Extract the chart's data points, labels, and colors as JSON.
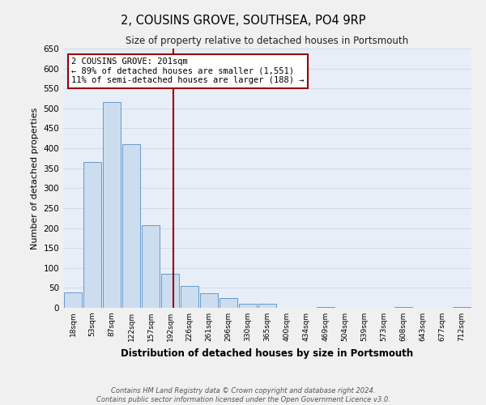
{
  "title": "2, COUSINS GROVE, SOUTHSEA, PO4 9RP",
  "subtitle": "Size of property relative to detached houses in Portsmouth",
  "xlabel": "Distribution of detached houses by size in Portsmouth",
  "ylabel": "Number of detached properties",
  "bar_color": "#ccddf0",
  "bar_edge_color": "#6699cc",
  "bin_labels": [
    "18sqm",
    "53sqm",
    "87sqm",
    "122sqm",
    "157sqm",
    "192sqm",
    "226sqm",
    "261sqm",
    "296sqm",
    "330sqm",
    "365sqm",
    "400sqm",
    "434sqm",
    "469sqm",
    "504sqm",
    "539sqm",
    "573sqm",
    "608sqm",
    "643sqm",
    "677sqm",
    "712sqm"
  ],
  "bar_heights": [
    38,
    365,
    515,
    410,
    207,
    85,
    55,
    37,
    25,
    10,
    10,
    0,
    0,
    2,
    0,
    0,
    0,
    2,
    0,
    0,
    2
  ],
  "ylim": [
    0,
    650
  ],
  "yticks": [
    0,
    50,
    100,
    150,
    200,
    250,
    300,
    350,
    400,
    450,
    500,
    550,
    600,
    650
  ],
  "vline_x": 5.18,
  "vline_color": "#990000",
  "annotation_title": "2 COUSINS GROVE: 201sqm",
  "annotation_line1": "← 89% of detached houses are smaller (1,551)",
  "annotation_line2": "11% of semi-detached houses are larger (188) →",
  "annotation_box_color": "#990000",
  "grid_color": "#d0daea",
  "background_color": "#e8eef8",
  "fig_facecolor": "#f0f0f0",
  "footer_line1": "Contains HM Land Registry data © Crown copyright and database right 2024.",
  "footer_line2": "Contains public sector information licensed under the Open Government Licence v3.0."
}
